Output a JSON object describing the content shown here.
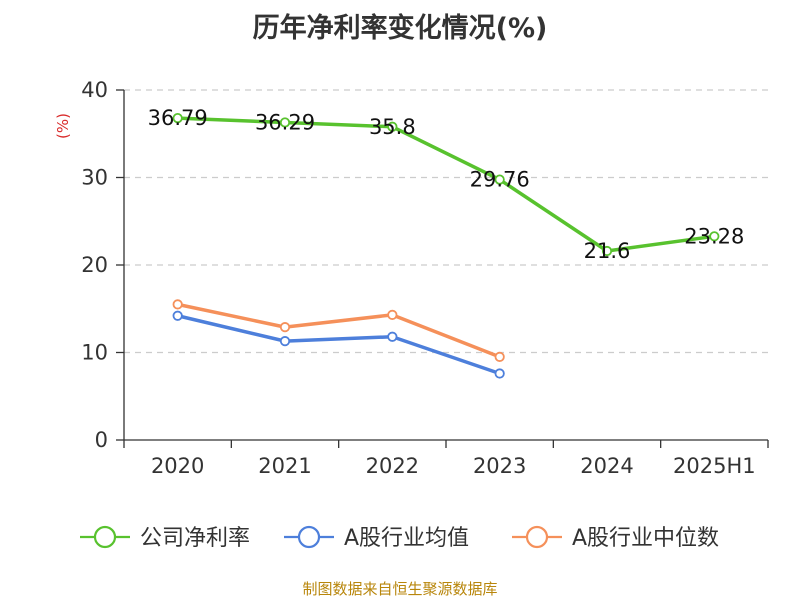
{
  "title": "历年净利率变化情况(%)",
  "source": "制图数据来自恒生聚源数据库",
  "colors": {
    "company": "#58c22e",
    "industry_avg": "#4d7fdb",
    "industry_median": "#f5905a",
    "axis": "#333333",
    "grid": "#cccccc",
    "unit": "#d92b2b",
    "text": "#333333"
  },
  "chart_data": {
    "type": "line",
    "title": "历年净利率变化情况(%)",
    "ylabel": "(%)",
    "xlabel": "",
    "categories": [
      "2020",
      "2021",
      "2022",
      "2023",
      "2024",
      "2025H1"
    ],
    "ylim": [
      0,
      40
    ],
    "yticks": [
      0,
      10,
      20,
      30,
      40
    ],
    "grid": "horizontal dashed",
    "legend_position": "bottom",
    "series": [
      {
        "name": "公司净利率",
        "color_key": "company",
        "values": [
          36.79,
          36.29,
          35.8,
          29.76,
          21.6,
          23.28
        ],
        "labels": [
          "36.79",
          "36.29",
          "35.8",
          "29.76",
          "21.6",
          "23.28"
        ]
      },
      {
        "name": "A股行业均值",
        "color_key": "industry_avg",
        "values": [
          14.2,
          11.3,
          11.8,
          7.6,
          null,
          null
        ]
      },
      {
        "name": "A股行业中位数",
        "color_key": "industry_median",
        "values": [
          15.5,
          12.9,
          14.3,
          9.5,
          null,
          null
        ]
      }
    ]
  }
}
